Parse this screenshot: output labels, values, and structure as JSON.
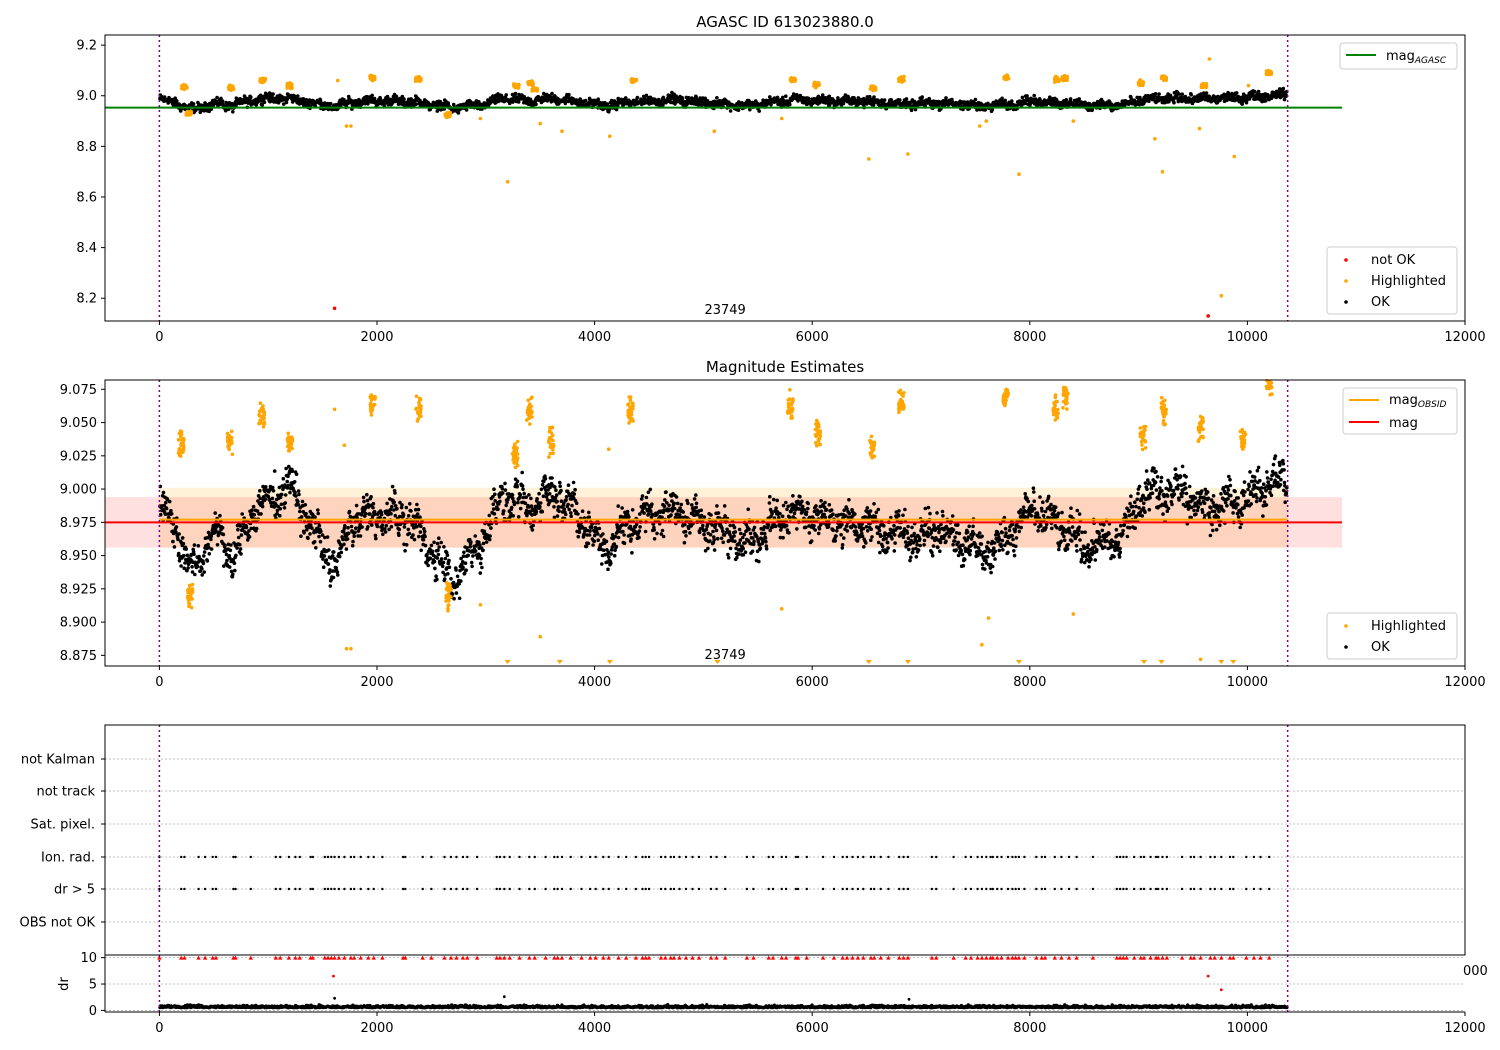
{
  "chart_data": [
    {
      "type": "scatter",
      "title": "AGASC ID 613023880.0",
      "xlim": [
        -500,
        12000
      ],
      "ylim": [
        8.11,
        9.24
      ],
      "xticks": [
        0,
        2000,
        4000,
        6000,
        8000,
        10000,
        12000
      ],
      "xtick_labels": [
        "0",
        "2000",
        "4000",
        "6000",
        "8000",
        "10000",
        "12000"
      ],
      "yticks": [
        8.2,
        8.4,
        8.6,
        8.8,
        9.0,
        9.2
      ],
      "ytick_labels": [
        "8.2",
        "8.4",
        "8.6",
        "8.8",
        "9.0",
        "9.2"
      ],
      "vlines": [
        0,
        10370
      ],
      "annotation": {
        "text": "23749",
        "x": 5200,
        "y": 8.15
      },
      "ref_lines": [
        {
          "name": "mag",
          "name_sub": "AGASC",
          "y": 8.953,
          "x_range": [
            -500,
            10870
          ],
          "color": "#008000"
        }
      ],
      "legends": [
        {
          "placement": "top-right",
          "entries": [
            {
              "label": "mag",
              "sub": "AGASC",
              "kind": "line",
              "color": "#008000"
            }
          ]
        },
        {
          "placement": "bottom-right",
          "entries": [
            {
              "label": "not OK",
              "kind": "dot",
              "color": "#ff0000"
            },
            {
              "label": "Highlighted",
              "kind": "dot",
              "color": "#ffa500"
            },
            {
              "label": "OK",
              "kind": "dot",
              "color": "#000000"
            }
          ]
        }
      ],
      "series": [
        {
          "name": "OK",
          "color": "#000000",
          "baseline": 8.975,
          "spread": 0.014,
          "x": [
            0,
            160,
            270,
            550,
            670,
            870,
            1000,
            1180,
            1400,
            1620,
            1760,
            1930,
            2300,
            2700,
            2990,
            3150,
            3400,
            3640,
            4100,
            4340,
            4700,
            5400,
            5820,
            6050,
            6500,
            6850,
            7200,
            7580,
            7800,
            8020,
            8260,
            8500,
            8830,
            9060,
            9400,
            9600,
            9930,
            10190,
            10360
          ],
          "y": [
            8.985,
            8.972,
            8.945,
            8.97,
            8.96,
            8.985,
            8.99,
            8.99,
            8.972,
            8.955,
            8.975,
            8.98,
            8.978,
            8.952,
            8.965,
            8.99,
            8.98,
            8.99,
            8.96,
            8.975,
            8.985,
            8.96,
            8.985,
            8.98,
            8.978,
            8.965,
            8.972,
            8.958,
            8.965,
            8.98,
            8.972,
            8.965,
            8.962,
            8.985,
            8.99,
            8.988,
            8.992,
            9.002,
            9.005
          ]
        },
        {
          "name": "Highlighted",
          "color": "#ffa500",
          "clusters": [
            [
              230,
              9.035
            ],
            [
              270,
              8.93
            ],
            [
              660,
              9.03
            ],
            [
              950,
              9.06
            ],
            [
              1200,
              9.04
            ],
            [
              1960,
              9.07
            ],
            [
              2380,
              9.065
            ],
            [
              2650,
              8.925
            ],
            [
              3280,
              9.04
            ],
            [
              3410,
              9.05
            ],
            [
              3450,
              9.025
            ],
            [
              4360,
              9.06
            ],
            [
              5820,
              9.065
            ],
            [
              6040,
              9.045
            ],
            [
              6560,
              9.03
            ],
            [
              6820,
              9.065
            ],
            [
              7780,
              9.07
            ],
            [
              8250,
              9.065
            ],
            [
              8320,
              9.07
            ],
            [
              9020,
              9.05
            ],
            [
              9230,
              9.07
            ],
            [
              9600,
              9.04
            ],
            [
              10200,
              9.09
            ]
          ],
          "outliers": [
            [
              1640,
              9.06
            ],
            [
              1720,
              8.88
            ],
            [
              1760,
              8.88
            ],
            [
              2950,
              8.91
            ],
            [
              3200,
              8.66
            ],
            [
              3500,
              8.89
            ],
            [
              3700,
              8.86
            ],
            [
              4140,
              8.84
            ],
            [
              5100,
              8.86
            ],
            [
              5720,
              8.91
            ],
            [
              6520,
              8.75
            ],
            [
              6880,
              8.77
            ],
            [
              7540,
              8.88
            ],
            [
              7600,
              8.9
            ],
            [
              7900,
              8.69
            ],
            [
              8400,
              8.9
            ],
            [
              9150,
              8.83
            ],
            [
              9220,
              8.7
            ],
            [
              9560,
              8.87
            ],
            [
              9650,
              9.145
            ],
            [
              9760,
              8.21
            ],
            [
              9880,
              8.76
            ],
            [
              10010,
              9.04
            ]
          ]
        },
        {
          "name": "not OK",
          "color": "#ff0000",
          "points": [
            [
              1610,
              8.16
            ],
            [
              9640,
              8.13
            ]
          ]
        }
      ]
    },
    {
      "type": "scatter",
      "title": "Magnitude Estimates",
      "xlim": [
        -500,
        12000
      ],
      "ylim": [
        8.867,
        9.082
      ],
      "xticks": [
        0,
        2000,
        4000,
        6000,
        8000,
        10000,
        12000
      ],
      "xtick_labels": [
        "0",
        "2000",
        "4000",
        "6000",
        "8000",
        "10000",
        "12000"
      ],
      "yticks": [
        8.875,
        8.9,
        8.925,
        8.95,
        8.975,
        9.0,
        9.025,
        9.05,
        9.075
      ],
      "ytick_labels": [
        "8.875",
        "8.900",
        "8.925",
        "8.950",
        "8.975",
        "9.000",
        "9.025",
        "9.050",
        "9.075"
      ],
      "vlines": [
        0,
        10370
      ],
      "annotation": {
        "text": "23749",
        "x": 5200,
        "y": 8.8745
      },
      "ref_lines": [
        {
          "name": "mag",
          "name_sub": "OBSID",
          "y": 8.977,
          "x_range": [
            0,
            10370
          ],
          "color": "#ffa500"
        },
        {
          "name": "mag",
          "y": 8.975,
          "x_range": [
            -500,
            10870
          ],
          "color": "#ff0000"
        }
      ],
      "bands": [
        {
          "y_range": [
            8.956,
            9.001
          ],
          "x_range": [
            0,
            10370
          ],
          "color": "#ffa500",
          "opacity": 0.15
        },
        {
          "y_range": [
            8.956,
            8.994
          ],
          "x_range": [
            -500,
            10870
          ],
          "color": "#ff0000",
          "opacity": 0.12
        }
      ],
      "legends": [
        {
          "placement": "top-right",
          "entries": [
            {
              "label": "mag",
              "sub": "OBSID",
              "kind": "line",
              "color": "#ffa500"
            },
            {
              "label": "mag",
              "kind": "line",
              "color": "#ff0000"
            }
          ]
        },
        {
          "placement": "bottom-right",
          "entries": [
            {
              "label": "Highlighted",
              "kind": "dot",
              "color": "#ffa500"
            },
            {
              "label": "OK",
              "kind": "dot",
              "color": "#000000"
            }
          ]
        }
      ],
      "series": [
        {
          "name": "OK",
          "color": "#000000",
          "spread": 0.011,
          "x": [
            0,
            160,
            270,
            550,
            670,
            870,
            1000,
            1180,
            1400,
            1620,
            1760,
            1930,
            2300,
            2700,
            2990,
            3150,
            3400,
            3640,
            4100,
            4340,
            4700,
            5400,
            5820,
            6050,
            6500,
            6850,
            7200,
            7580,
            7800,
            8020,
            8260,
            8500,
            8830,
            9060,
            9400,
            9600,
            9930,
            10190,
            10360
          ],
          "y": [
            8.985,
            8.972,
            8.938,
            8.97,
            8.945,
            8.985,
            8.99,
            9.005,
            8.972,
            8.94,
            8.975,
            8.98,
            8.978,
            8.93,
            8.965,
            8.995,
            8.985,
            9.0,
            8.955,
            8.975,
            8.985,
            8.96,
            8.985,
            8.978,
            8.972,
            8.965,
            8.97,
            8.952,
            8.965,
            8.985,
            8.972,
            8.958,
            8.962,
            8.998,
            9.0,
            8.985,
            8.99,
            9.005,
            9.005
          ]
        },
        {
          "name": "Highlighted",
          "color": "#ffa500",
          "clusters": [
            [
              200,
              9.035
            ],
            [
              280,
              8.92
            ],
            [
              650,
              9.035
            ],
            [
              940,
              9.055
            ],
            [
              1200,
              9.035
            ],
            [
              1960,
              9.065
            ],
            [
              2380,
              9.062
            ],
            [
              2660,
              8.922
            ],
            [
              3270,
              9.025
            ],
            [
              3400,
              9.06
            ],
            [
              3600,
              9.035
            ],
            [
              4330,
              9.06
            ],
            [
              5800,
              9.062
            ],
            [
              6050,
              9.042
            ],
            [
              6550,
              9.032
            ],
            [
              6820,
              9.065
            ],
            [
              7780,
              9.07
            ],
            [
              8240,
              9.06
            ],
            [
              8330,
              9.07
            ],
            [
              9040,
              9.04
            ],
            [
              9230,
              9.06
            ],
            [
              9570,
              9.045
            ],
            [
              9960,
              9.038
            ],
            [
              10200,
              9.078
            ]
          ],
          "outliers": [
            [
              1610,
              9.06
            ],
            [
              1720,
              8.88
            ],
            [
              1760,
              8.88
            ],
            [
              2950,
              8.913
            ],
            [
              3500,
              8.889
            ],
            [
              4130,
              9.03
            ],
            [
              5720,
              8.91
            ],
            [
              7560,
              8.883
            ],
            [
              7620,
              8.903
            ],
            [
              8400,
              8.906
            ],
            [
              9570,
              8.872
            ],
            [
              1700,
              9.033
            ]
          ],
          "clipped_x": [
            3200,
            3680,
            4140,
            5130,
            6520,
            6880,
            7900,
            9050,
            9210,
            9760,
            9870
          ]
        }
      ]
    },
    {
      "type": "scatter",
      "title": "",
      "xlim": [
        -500,
        12000
      ],
      "category_rows": [
        "not Kalman",
        "not track",
        "Sat. pixel.",
        "Ion. rad.",
        "dr > 5",
        "OBS not OK"
      ],
      "flag_rows": [
        "Ion. rad.",
        "dr > 5"
      ],
      "flag_x": [
        0,
        200,
        230,
        360,
        420,
        490,
        520,
        680,
        700,
        840,
        1070,
        1110,
        1190,
        1250,
        1290,
        1390,
        1410,
        1520,
        1550,
        1580,
        1610,
        1650,
        1700,
        1760,
        1790,
        1850,
        1920,
        1970,
        2050,
        2240,
        2260,
        2420,
        2500,
        2620,
        2680,
        2730,
        2790,
        2830,
        2920,
        3100,
        3130,
        3170,
        3220,
        3310,
        3400,
        3450,
        3550,
        3630,
        3660,
        3700,
        3780,
        3880,
        3960,
        4010,
        4080,
        4130,
        4220,
        4290,
        4380,
        4440,
        4470,
        4500,
        4610,
        4650,
        4700,
        4730,
        4780,
        4840,
        4900,
        4960,
        5070,
        5120,
        5200,
        5400,
        5460,
        5600,
        5640,
        5720,
        5760,
        5850,
        5870,
        5950,
        6100,
        6200,
        6280,
        6320,
        6370,
        6420,
        6470,
        6540,
        6570,
        6630,
        6700,
        6800,
        6840,
        6880,
        7100,
        7140,
        7300,
        7410,
        7460,
        7520,
        7560,
        7600,
        7640,
        7660,
        7700,
        7740,
        7800,
        7840,
        7870,
        7900,
        7950,
        8060,
        8110,
        8140,
        8230,
        8290,
        8360,
        8430,
        8580,
        8800,
        8830,
        8860,
        8890,
        8960,
        9020,
        9050,
        9110,
        9160,
        9180,
        9220,
        9260,
        9400,
        9480,
        9510,
        9570,
        9660,
        9700,
        9760,
        9840,
        9870,
        9990,
        10060,
        10120,
        10200
      ],
      "vlines": [
        0,
        10370
      ]
    },
    {
      "type": "scatter",
      "title": "",
      "xlim": [
        -500,
        12000
      ],
      "ylim": [
        -0.3,
        10.5
      ],
      "xticks": [
        0,
        2000,
        4000,
        6000,
        8000,
        10000,
        12000
      ],
      "xtick_labels": [
        "0",
        "2000",
        "4000",
        "6000",
        "8000",
        "10000",
        "12000"
      ],
      "yticks": [
        0,
        5,
        10
      ],
      "ytick_labels": [
        "0",
        "5",
        "10"
      ],
      "ylabel": "dr",
      "clipped_label": "000",
      "vlines": [
        0,
        10370
      ],
      "series": [
        {
          "name": "dr",
          "color": "#000000",
          "baseline": 0.6
        },
        {
          "name": "dr > 5",
          "color": "#ff0000",
          "clip_y": 10,
          "points": [
            [
              1600,
              6.5
            ],
            [
              9640,
              6.5
            ],
            [
              9760,
              3.9
            ]
          ]
        }
      ]
    }
  ]
}
